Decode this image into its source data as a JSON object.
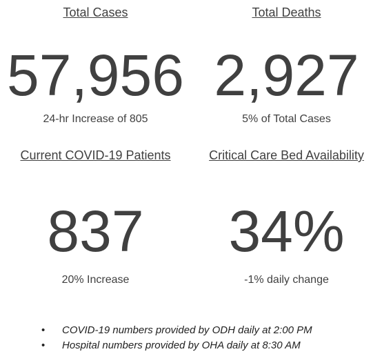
{
  "panels": [
    {
      "title": "Total Cases",
      "value": "57,956",
      "subtitle": "24-hr Increase of 805"
    },
    {
      "title": "Total Deaths",
      "value": "2,927",
      "subtitle": "5% of Total Cases"
    },
    {
      "title": "Current COVID-19 Patients",
      "value": "837",
      "subtitle": "20% Increase"
    },
    {
      "title": "Critical Care Bed Availability",
      "value": "34%",
      "subtitle": "-1% daily change"
    }
  ],
  "notes": [
    "COVID-19 numbers provided by ODH daily at 2:00 PM",
    "Hospital numbers provided by OHA daily at 8:30 AM"
  ]
}
